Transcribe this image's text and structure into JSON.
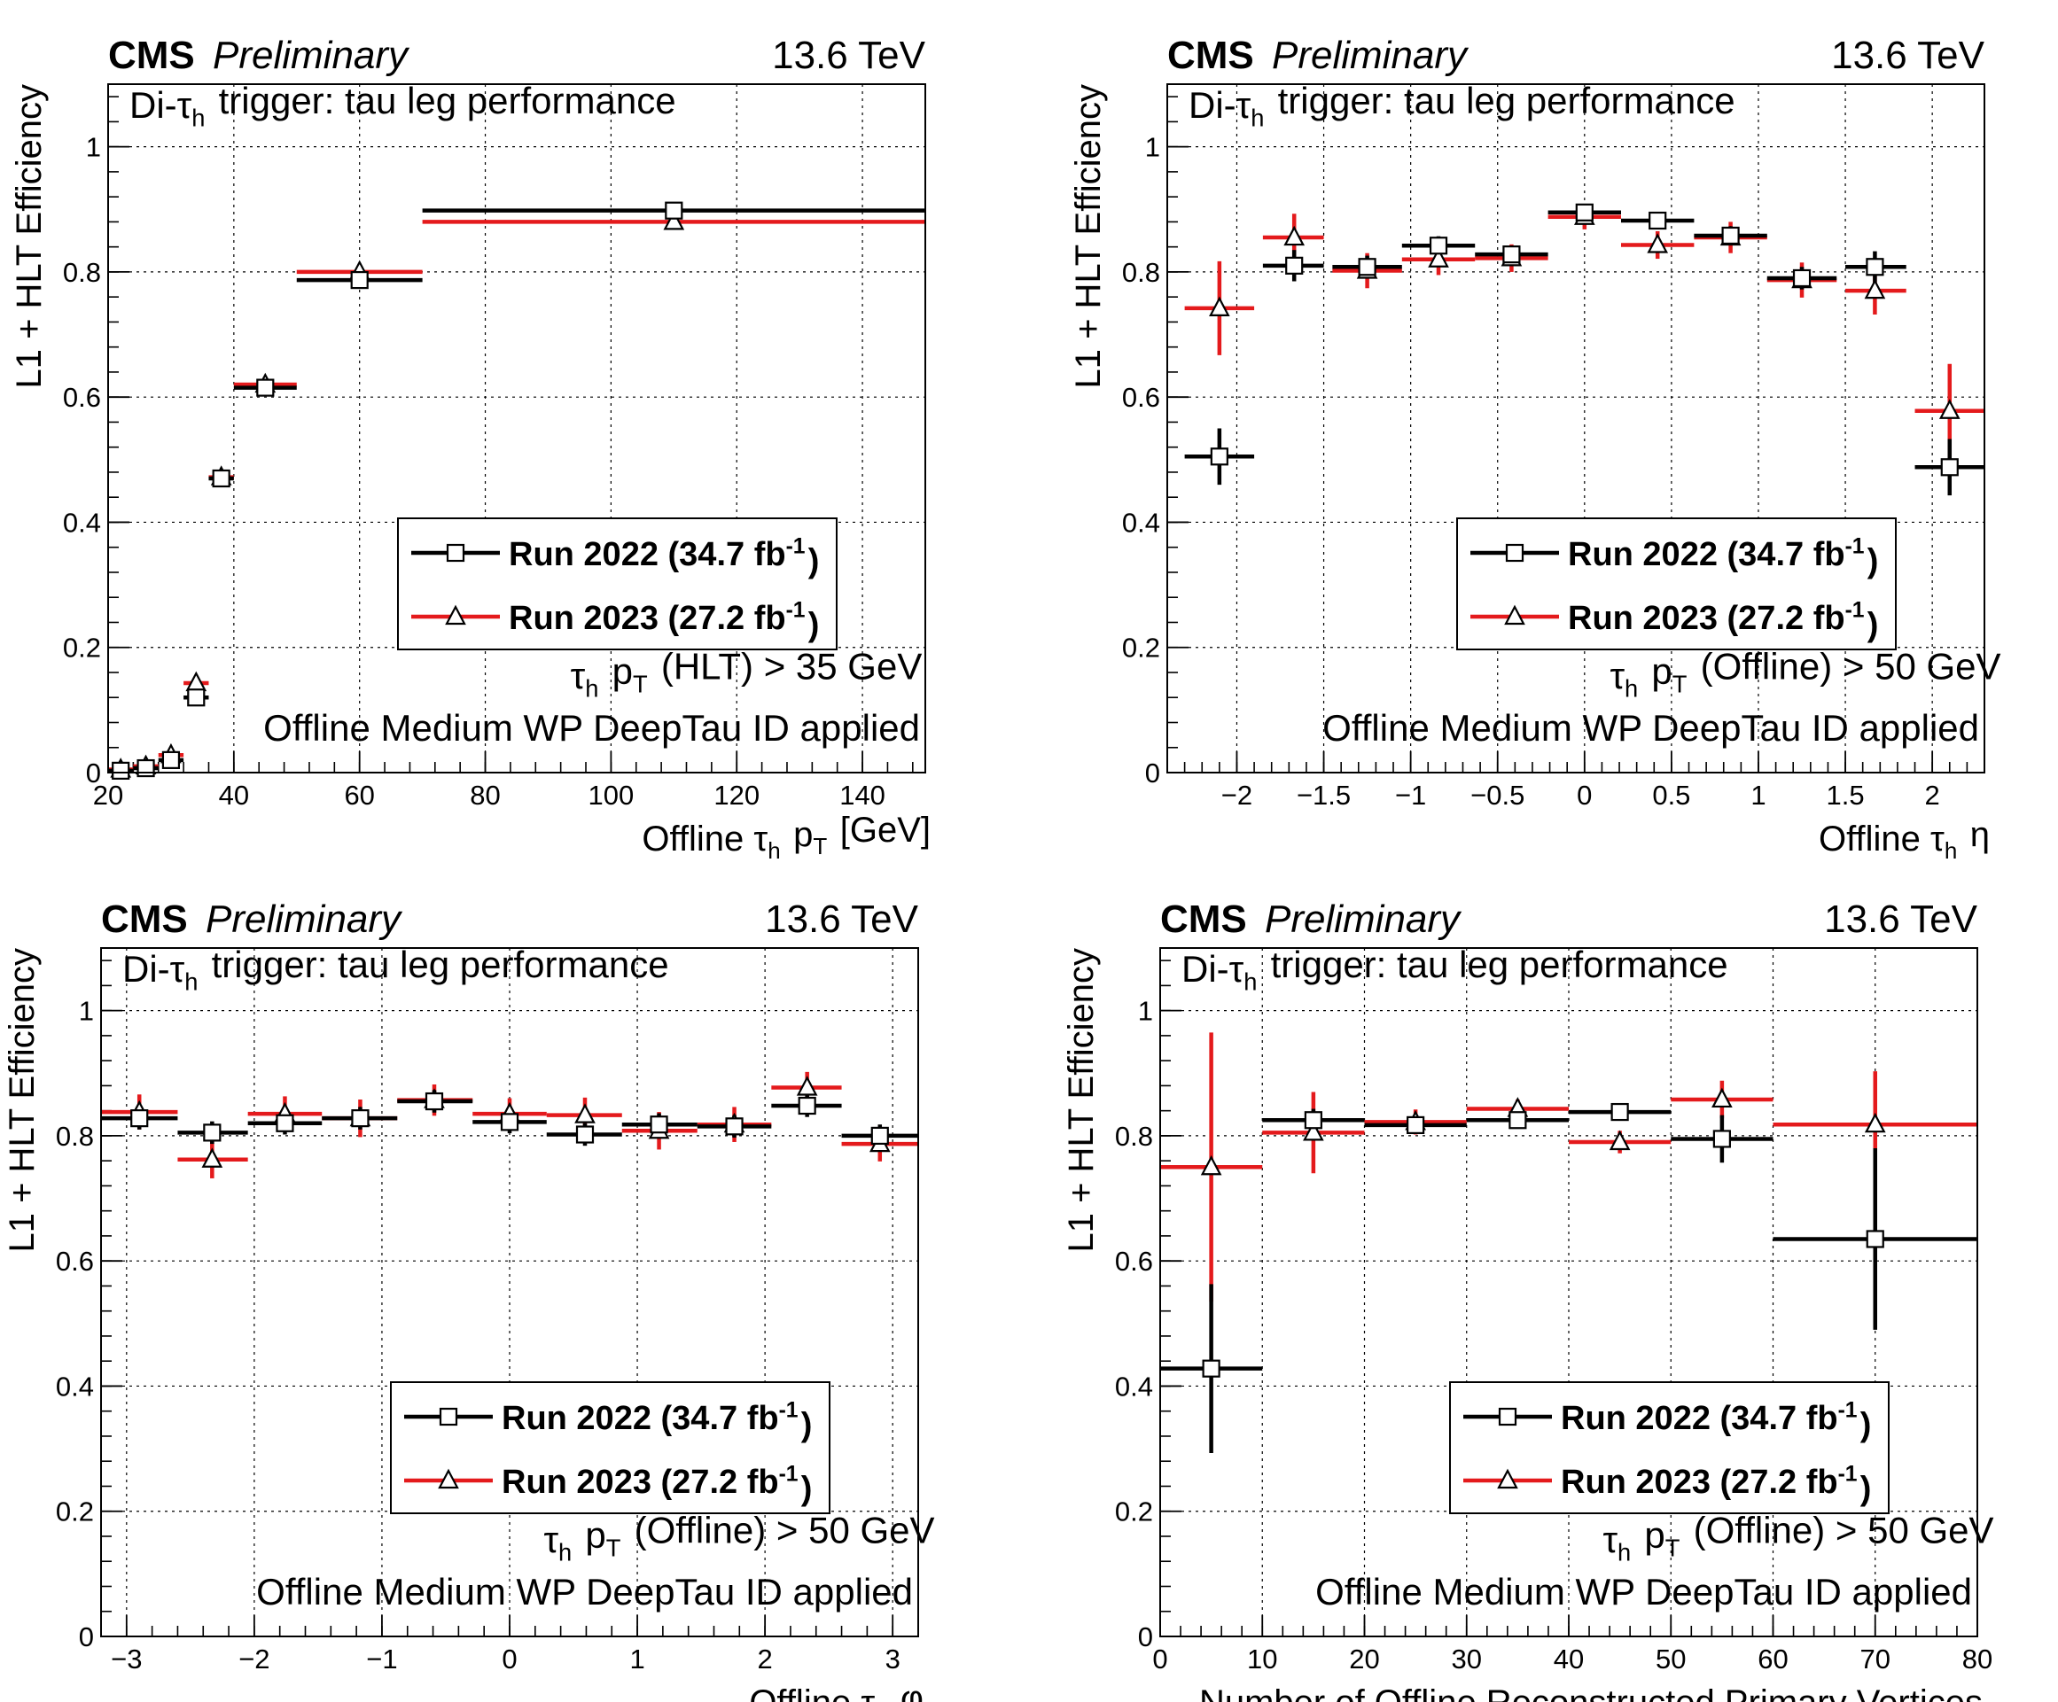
{
  "figure": {
    "cms_label": "CMS",
    "prelim_label": "Preliminary",
    "energy_label": "13.6 TeV"
  },
  "colors": {
    "run2022": "#000000",
    "run2023": "#e41a1c"
  },
  "chart_data": [
    {
      "type": "scatter",
      "id": "pt",
      "title": "Di-τh trigger: tau leg performance",
      "annotation1": "τh pT (HLT) > 35 GeV",
      "annotation2": "Offline Medium WP DeepTau ID applied",
      "xlabel": "Offline τh pT [GeV]",
      "ylabel": "L1 + HLT Efficiency",
      "xlim": [
        20,
        150
      ],
      "ylim": [
        0,
        1.1
      ],
      "xticks": [
        20,
        40,
        60,
        80,
        100,
        120,
        140
      ],
      "xticklabels": [
        "20",
        "40",
        "60",
        "80",
        "100",
        "120",
        "140"
      ],
      "yticks": [
        0,
        0.2,
        0.4,
        0.6,
        0.8,
        1
      ],
      "yticklabels": [
        "0",
        "0.2",
        "0.4",
        "0.6",
        "0.8",
        "1"
      ],
      "legend_position": "center-right",
      "series": [
        {
          "name": "Run 2022 (34.7 fb-1)",
          "marker": "square",
          "points": [
            {
              "x": 22,
              "xlo": 20,
              "xhi": 24,
              "y": 0.003,
              "err": 0.003
            },
            {
              "x": 26,
              "xlo": 24,
              "xhi": 28,
              "y": 0.007,
              "err": 0.004
            },
            {
              "x": 30,
              "xlo": 28,
              "xhi": 32,
              "y": 0.02,
              "err": 0.006
            },
            {
              "x": 34,
              "xlo": 32,
              "xhi": 36,
              "y": 0.12,
              "err": 0.01
            },
            {
              "x": 38,
              "xlo": 36,
              "xhi": 40,
              "y": 0.47,
              "err": 0.008
            },
            {
              "x": 45,
              "xlo": 40,
              "xhi": 50,
              "y": 0.615,
              "err": 0.006
            },
            {
              "x": 60,
              "xlo": 50,
              "xhi": 70,
              "y": 0.787,
              "err": 0.006
            },
            {
              "x": 110,
              "xlo": 70,
              "xhi": 150,
              "y": 0.898,
              "err": 0.006
            }
          ]
        },
        {
          "name": "Run 2023 (27.2 fb-1)",
          "marker": "triangle",
          "points": [
            {
              "x": 22,
              "xlo": 20,
              "xhi": 24,
              "y": 0.005,
              "err": 0.003
            },
            {
              "x": 26,
              "xlo": 24,
              "xhi": 28,
              "y": 0.01,
              "err": 0.004
            },
            {
              "x": 30,
              "xlo": 28,
              "xhi": 32,
              "y": 0.028,
              "err": 0.007
            },
            {
              "x": 34,
              "xlo": 32,
              "xhi": 36,
              "y": 0.143,
              "err": 0.012
            },
            {
              "x": 38,
              "xlo": 36,
              "xhi": 40,
              "y": 0.472,
              "err": 0.008
            },
            {
              "x": 45,
              "xlo": 40,
              "xhi": 50,
              "y": 0.62,
              "err": 0.007
            },
            {
              "x": 60,
              "xlo": 50,
              "xhi": 70,
              "y": 0.8,
              "err": 0.007
            },
            {
              "x": 110,
              "xlo": 70,
              "xhi": 150,
              "y": 0.88,
              "err": 0.008
            }
          ]
        }
      ]
    },
    {
      "type": "scatter",
      "id": "eta",
      "title": "Di-τh trigger: tau leg performance",
      "annotation1": "τh pT (Offline) > 50 GeV",
      "annotation2": "Offline Medium WP DeepTau ID applied",
      "xlabel": "Offline τh η",
      "ylabel": "L1 + HLT Efficiency",
      "xlim": [
        -2.4,
        2.3
      ],
      "ylim": [
        0,
        1.1
      ],
      "xticks": [
        -2,
        -1.5,
        -1,
        -0.5,
        0,
        0.5,
        1,
        1.5,
        2
      ],
      "xticklabels": [
        "−2",
        "−1.5",
        "−1",
        "−0.5",
        "0",
        "0.5",
        "1",
        "1.5",
        "2"
      ],
      "yticks": [
        0,
        0.2,
        0.4,
        0.6,
        0.8,
        1
      ],
      "yticklabels": [
        "0",
        "0.2",
        "0.4",
        "0.6",
        "0.8",
        "1"
      ],
      "legend_position": "center-right",
      "series": [
        {
          "name": "Run 2022 (34.7 fb-1)",
          "marker": "square",
          "points": [
            {
              "x": -2.1,
              "xlo": -2.3,
              "xhi": -1.9,
              "y": 0.505,
              "err": 0.045
            },
            {
              "x": -1.67,
              "xlo": -1.85,
              "xhi": -1.5,
              "y": 0.81,
              "err": 0.025
            },
            {
              "x": -1.25,
              "xlo": -1.45,
              "xhi": -1.05,
              "y": 0.808,
              "err": 0.018
            },
            {
              "x": -0.84,
              "xlo": -1.05,
              "xhi": -0.63,
              "y": 0.842,
              "err": 0.015
            },
            {
              "x": -0.42,
              "xlo": -0.63,
              "xhi": -0.21,
              "y": 0.828,
              "err": 0.013
            },
            {
              "x": 0.0,
              "xlo": -0.21,
              "xhi": 0.21,
              "y": 0.895,
              "err": 0.012
            },
            {
              "x": 0.42,
              "xlo": 0.21,
              "xhi": 0.63,
              "y": 0.882,
              "err": 0.013
            },
            {
              "x": 0.84,
              "xlo": 0.63,
              "xhi": 1.05,
              "y": 0.858,
              "err": 0.015
            },
            {
              "x": 1.25,
              "xlo": 1.05,
              "xhi": 1.45,
              "y": 0.79,
              "err": 0.018
            },
            {
              "x": 1.67,
              "xlo": 1.5,
              "xhi": 1.85,
              "y": 0.808,
              "err": 0.025
            },
            {
              "x": 2.1,
              "xlo": 1.9,
              "xhi": 2.3,
              "y": 0.488,
              "err": 0.045
            }
          ]
        },
        {
          "name": "Run 2023 (27.2 fb-1)",
          "marker": "triangle",
          "points": [
            {
              "x": -2.1,
              "xlo": -2.3,
              "xhi": -1.9,
              "y": 0.742,
              "err": 0.075
            },
            {
              "x": -1.67,
              "xlo": -1.85,
              "xhi": -1.5,
              "y": 0.855,
              "err": 0.038
            },
            {
              "x": -1.25,
              "xlo": -1.45,
              "xhi": -1.05,
              "y": 0.802,
              "err": 0.028
            },
            {
              "x": -0.84,
              "xlo": -1.05,
              "xhi": -0.63,
              "y": 0.82,
              "err": 0.025
            },
            {
              "x": -0.42,
              "xlo": -0.63,
              "xhi": -0.21,
              "y": 0.822,
              "err": 0.022
            },
            {
              "x": 0.0,
              "xlo": -0.21,
              "xhi": 0.21,
              "y": 0.888,
              "err": 0.02
            },
            {
              "x": 0.42,
              "xlo": 0.21,
              "xhi": 0.63,
              "y": 0.843,
              "err": 0.022
            },
            {
              "x": 0.84,
              "xlo": 0.63,
              "xhi": 1.05,
              "y": 0.855,
              "err": 0.025
            },
            {
              "x": 1.25,
              "xlo": 1.05,
              "xhi": 1.45,
              "y": 0.787,
              "err": 0.028
            },
            {
              "x": 1.67,
              "xlo": 1.5,
              "xhi": 1.85,
              "y": 0.77,
              "err": 0.038
            },
            {
              "x": 2.1,
              "xlo": 1.9,
              "xhi": 2.3,
              "y": 0.578,
              "err": 0.075
            }
          ]
        }
      ]
    },
    {
      "type": "scatter",
      "id": "phi",
      "title": "Di-τh trigger: tau leg performance",
      "annotation1": "τh pT (Offline) > 50 GeV",
      "annotation2": "Offline Medium WP DeepTau ID applied",
      "xlabel": "Offline τh φ",
      "ylabel": "L1 + HLT Efficiency",
      "xlim": [
        -3.2,
        3.2
      ],
      "ylim": [
        0,
        1.1
      ],
      "xticks": [
        -3,
        -2,
        -1,
        0,
        1,
        2,
        3
      ],
      "xticklabels": [
        "−3",
        "−2",
        "−1",
        "0",
        "1",
        "2",
        "3"
      ],
      "yticks": [
        0,
        0.2,
        0.4,
        0.6,
        0.8,
        1
      ],
      "yticklabels": [
        "0",
        "0.2",
        "0.4",
        "0.6",
        "0.8",
        "1"
      ],
      "legend_position": "center-right",
      "series": [
        {
          "name": "Run 2022 (34.7 fb-1)",
          "marker": "square",
          "points": [
            {
              "x": -2.9,
              "xlo": -3.2,
              "xhi": -2.6,
              "y": 0.828,
              "err": 0.018
            },
            {
              "x": -2.33,
              "xlo": -2.6,
              "xhi": -2.05,
              "y": 0.805,
              "err": 0.018
            },
            {
              "x": -1.76,
              "xlo": -2.05,
              "xhi": -1.47,
              "y": 0.82,
              "err": 0.018
            },
            {
              "x": -1.17,
              "xlo": -1.47,
              "xhi": -0.88,
              "y": 0.828,
              "err": 0.018
            },
            {
              "x": -0.59,
              "xlo": -0.88,
              "xhi": -0.29,
              "y": 0.855,
              "err": 0.018
            },
            {
              "x": 0.0,
              "xlo": -0.29,
              "xhi": 0.29,
              "y": 0.822,
              "err": 0.018
            },
            {
              "x": 0.59,
              "xlo": 0.29,
              "xhi": 0.88,
              "y": 0.802,
              "err": 0.018
            },
            {
              "x": 1.17,
              "xlo": 0.88,
              "xhi": 1.47,
              "y": 0.818,
              "err": 0.018
            },
            {
              "x": 1.76,
              "xlo": 1.47,
              "xhi": 2.05,
              "y": 0.815,
              "err": 0.018
            },
            {
              "x": 2.33,
              "xlo": 2.05,
              "xhi": 2.6,
              "y": 0.848,
              "err": 0.018
            },
            {
              "x": 2.9,
              "xlo": 2.6,
              "xhi": 3.2,
              "y": 0.8,
              "err": 0.018
            }
          ]
        },
        {
          "name": "Run 2023 (27.2 fb-1)",
          "marker": "triangle",
          "points": [
            {
              "x": -2.9,
              "xlo": -3.2,
              "xhi": -2.6,
              "y": 0.838,
              "err": 0.028
            },
            {
              "x": -2.33,
              "xlo": -2.6,
              "xhi": -2.05,
              "y": 0.762,
              "err": 0.03
            },
            {
              "x": -1.76,
              "xlo": -2.05,
              "xhi": -1.47,
              "y": 0.835,
              "err": 0.028
            },
            {
              "x": -1.17,
              "xlo": -1.47,
              "xhi": -0.88,
              "y": 0.828,
              "err": 0.03
            },
            {
              "x": -0.59,
              "xlo": -0.88,
              "xhi": -0.29,
              "y": 0.857,
              "err": 0.025
            },
            {
              "x": 0.0,
              "xlo": -0.29,
              "xhi": 0.29,
              "y": 0.835,
              "err": 0.025
            },
            {
              "x": 0.59,
              "xlo": 0.29,
              "xhi": 0.88,
              "y": 0.833,
              "err": 0.028
            },
            {
              "x": 1.17,
              "xlo": 0.88,
              "xhi": 1.47,
              "y": 0.808,
              "err": 0.03
            },
            {
              "x": 1.76,
              "xlo": 1.47,
              "xhi": 2.05,
              "y": 0.818,
              "err": 0.028
            },
            {
              "x": 2.33,
              "xlo": 2.05,
              "xhi": 2.6,
              "y": 0.877,
              "err": 0.025
            },
            {
              "x": 2.9,
              "xlo": 2.6,
              "xhi": 3.2,
              "y": 0.787,
              "err": 0.028
            }
          ]
        }
      ]
    },
    {
      "type": "scatter",
      "id": "npv",
      "title": "Di-τh trigger: tau leg performance",
      "annotation1": "τh pT (Offline) > 50 GeV",
      "annotation2": "Offline Medium WP DeepTau ID applied",
      "xlabel": "Number of Offline Reconstructed Primary Vertices",
      "ylabel": "L1 + HLT Efficiency",
      "xlim": [
        0,
        80
      ],
      "ylim": [
        0,
        1.1
      ],
      "xticks": [
        0,
        10,
        20,
        30,
        40,
        50,
        60,
        70,
        80
      ],
      "xticklabels": [
        "0",
        "10",
        "20",
        "30",
        "40",
        "50",
        "60",
        "70",
        "80"
      ],
      "yticks": [
        0,
        0.2,
        0.4,
        0.6,
        0.8,
        1
      ],
      "yticklabels": [
        "0",
        "0.2",
        "0.4",
        "0.6",
        "0.8",
        "1"
      ],
      "legend_position": "center-right",
      "series": [
        {
          "name": "Run 2022 (34.7 fb-1)",
          "marker": "square",
          "points": [
            {
              "x": 5,
              "xlo": 0,
              "xhi": 10,
              "y": 0.428,
              "err": 0.135
            },
            {
              "x": 15,
              "xlo": 10,
              "xhi": 20,
              "y": 0.825,
              "err": 0.018
            },
            {
              "x": 25,
              "xlo": 20,
              "xhi": 30,
              "y": 0.817,
              "err": 0.01
            },
            {
              "x": 35,
              "xlo": 30,
              "xhi": 40,
              "y": 0.825,
              "err": 0.01
            },
            {
              "x": 45,
              "xlo": 40,
              "xhi": 50,
              "y": 0.838,
              "err": 0.012
            },
            {
              "x": 55,
              "xlo": 50,
              "xhi": 60,
              "y": 0.795,
              "err": 0.038
            },
            {
              "x": 70,
              "xlo": 60,
              "xhi": 80,
              "y": 0.635,
              "err": 0.145
            }
          ]
        },
        {
          "name": "Run 2023 (27.2 fb-1)",
          "marker": "triangle",
          "points": [
            {
              "x": 5,
              "xlo": 0,
              "xhi": 10,
              "y": 0.75,
              "err": 0.215
            },
            {
              "x": 15,
              "xlo": 10,
              "xhi": 20,
              "y": 0.805,
              "err": 0.065
            },
            {
              "x": 25,
              "xlo": 20,
              "xhi": 30,
              "y": 0.822,
              "err": 0.02
            },
            {
              "x": 35,
              "xlo": 30,
              "xhi": 40,
              "y": 0.843,
              "err": 0.015
            },
            {
              "x": 45,
              "xlo": 40,
              "xhi": 50,
              "y": 0.79,
              "err": 0.018
            },
            {
              "x": 55,
              "xlo": 50,
              "xhi": 60,
              "y": 0.858,
              "err": 0.03
            },
            {
              "x": 70,
              "xlo": 60,
              "xhi": 80,
              "y": 0.818,
              "err": 0.085
            }
          ]
        }
      ]
    }
  ]
}
